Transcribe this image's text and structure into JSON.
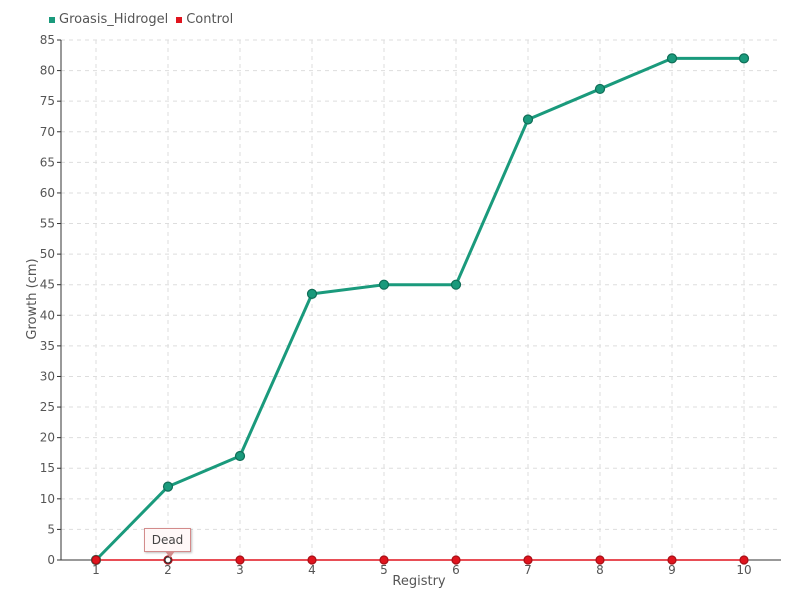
{
  "legend": {
    "items": [
      {
        "label": "Groasis_Hidrogel",
        "color": "#1a9a7c"
      },
      {
        "label": "Control",
        "color": "#e0141e"
      }
    ]
  },
  "tooltip": {
    "text": "Dead"
  },
  "chart_data": {
    "type": "line",
    "xlabel": "Registry",
    "ylabel": "Growth (cm)",
    "categories": [
      "1",
      "2",
      "3",
      "4",
      "5",
      "6",
      "7",
      "8",
      "9",
      "10"
    ],
    "ylim": [
      0,
      85
    ],
    "yticks": [
      0,
      5,
      10,
      15,
      20,
      25,
      30,
      35,
      40,
      45,
      50,
      55,
      60,
      65,
      70,
      75,
      80,
      85
    ],
    "grid": true,
    "legend_position": "top-left",
    "series": [
      {
        "name": "Groasis_Hidrogel",
        "color": "#1a9a7c",
        "values": [
          0,
          12,
          17,
          43.5,
          45,
          45,
          72,
          77,
          82,
          82
        ]
      },
      {
        "name": "Control",
        "color": "#e0141e",
        "values": [
          0,
          0,
          0,
          0,
          0,
          0,
          0,
          0,
          0,
          0
        ]
      }
    ]
  }
}
